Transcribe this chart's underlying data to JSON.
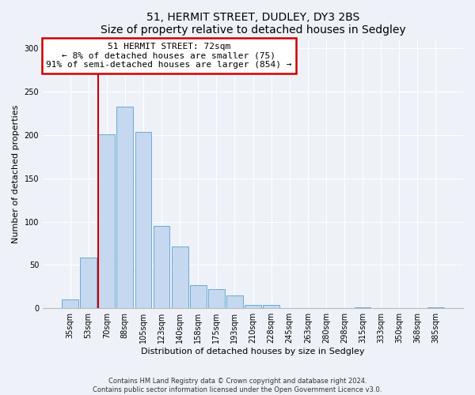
{
  "title1": "51, HERMIT STREET, DUDLEY, DY3 2BS",
  "title2": "Size of property relative to detached houses in Sedgley",
  "xlabel": "Distribution of detached houses by size in Sedgley",
  "ylabel": "Number of detached properties",
  "footer1": "Contains HM Land Registry data © Crown copyright and database right 2024.",
  "footer2": "Contains public sector information licensed under the Open Government Licence v3.0.",
  "annotation_title": "51 HERMIT STREET: 72sqm",
  "annotation_line1": "← 8% of detached houses are smaller (75)",
  "annotation_line2": "91% of semi-detached houses are larger (854) →",
  "bar_labels": [
    "35sqm",
    "53sqm",
    "70sqm",
    "88sqm",
    "105sqm",
    "123sqm",
    "140sqm",
    "158sqm",
    "175sqm",
    "193sqm",
    "210sqm",
    "228sqm",
    "245sqm",
    "263sqm",
    "280sqm",
    "298sqm",
    "315sqm",
    "333sqm",
    "350sqm",
    "368sqm",
    "385sqm"
  ],
  "bar_values": [
    10,
    59,
    201,
    233,
    204,
    95,
    71,
    27,
    22,
    15,
    4,
    4,
    0,
    0,
    0,
    0,
    1,
    0,
    0,
    0,
    1
  ],
  "bar_color": "#c5d8ef",
  "bar_edge_color": "#6aaad4",
  "ylim": [
    0,
    310
  ],
  "yticks": [
    0,
    50,
    100,
    150,
    200,
    250,
    300
  ],
  "annotation_box_facecolor": "#ffffff",
  "annotation_box_edgecolor": "#cc0000",
  "vertical_line_color": "#cc0000",
  "background_color": "#eef2f8",
  "plot_bg_color": "#eef2f8",
  "grid_color": "#ffffff",
  "title_fontsize": 10,
  "axis_label_fontsize": 8,
  "tick_fontsize": 7,
  "footer_fontsize": 6,
  "annotation_fontsize": 8
}
